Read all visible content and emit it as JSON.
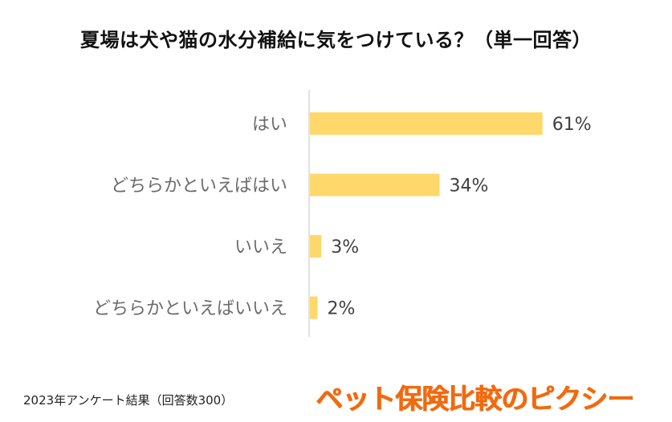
{
  "title": "夏場は犬や猫の水分補給に気をつけている？（単一回答）",
  "chart_data": {
    "type": "bar",
    "orientation": "horizontal",
    "categories": [
      "はい",
      "どちらかといえばはい",
      "いいえ",
      "どちらかといえばいいえ"
    ],
    "values": [
      61,
      34,
      3,
      2
    ],
    "value_labels": [
      "61%",
      "34%",
      "3%",
      "2%"
    ],
    "unit": "%",
    "xlim": [
      0,
      100
    ],
    "grid": false,
    "legend": "none",
    "bar_color": "#ffd86b"
  },
  "footnote": "2023年アンケート結果（回答数300）",
  "brand": "ペット保険比較のピクシー",
  "colors": {
    "brand": "#f26a0f",
    "axis": "#d9d9d9",
    "category_text": "#6b6b6b",
    "value_text": "#404040"
  }
}
